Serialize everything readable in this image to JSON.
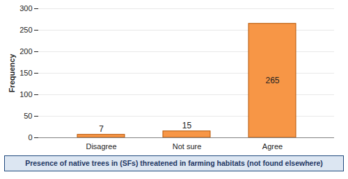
{
  "chart_data": {
    "type": "bar",
    "categories": [
      "Disagree",
      "Not sure",
      "Agree"
    ],
    "values": [
      7,
      15,
      265
    ],
    "color": "#F79646",
    "ylabel": "Frequency",
    "xlabel": "Presence of native trees in (SFs) threatened in farming habitats (not found elsewhere)",
    "ylim": [
      0,
      300
    ],
    "yticks": [
      0,
      50,
      100,
      150,
      200,
      250,
      300
    ],
    "grid": true,
    "data_labels": true
  }
}
